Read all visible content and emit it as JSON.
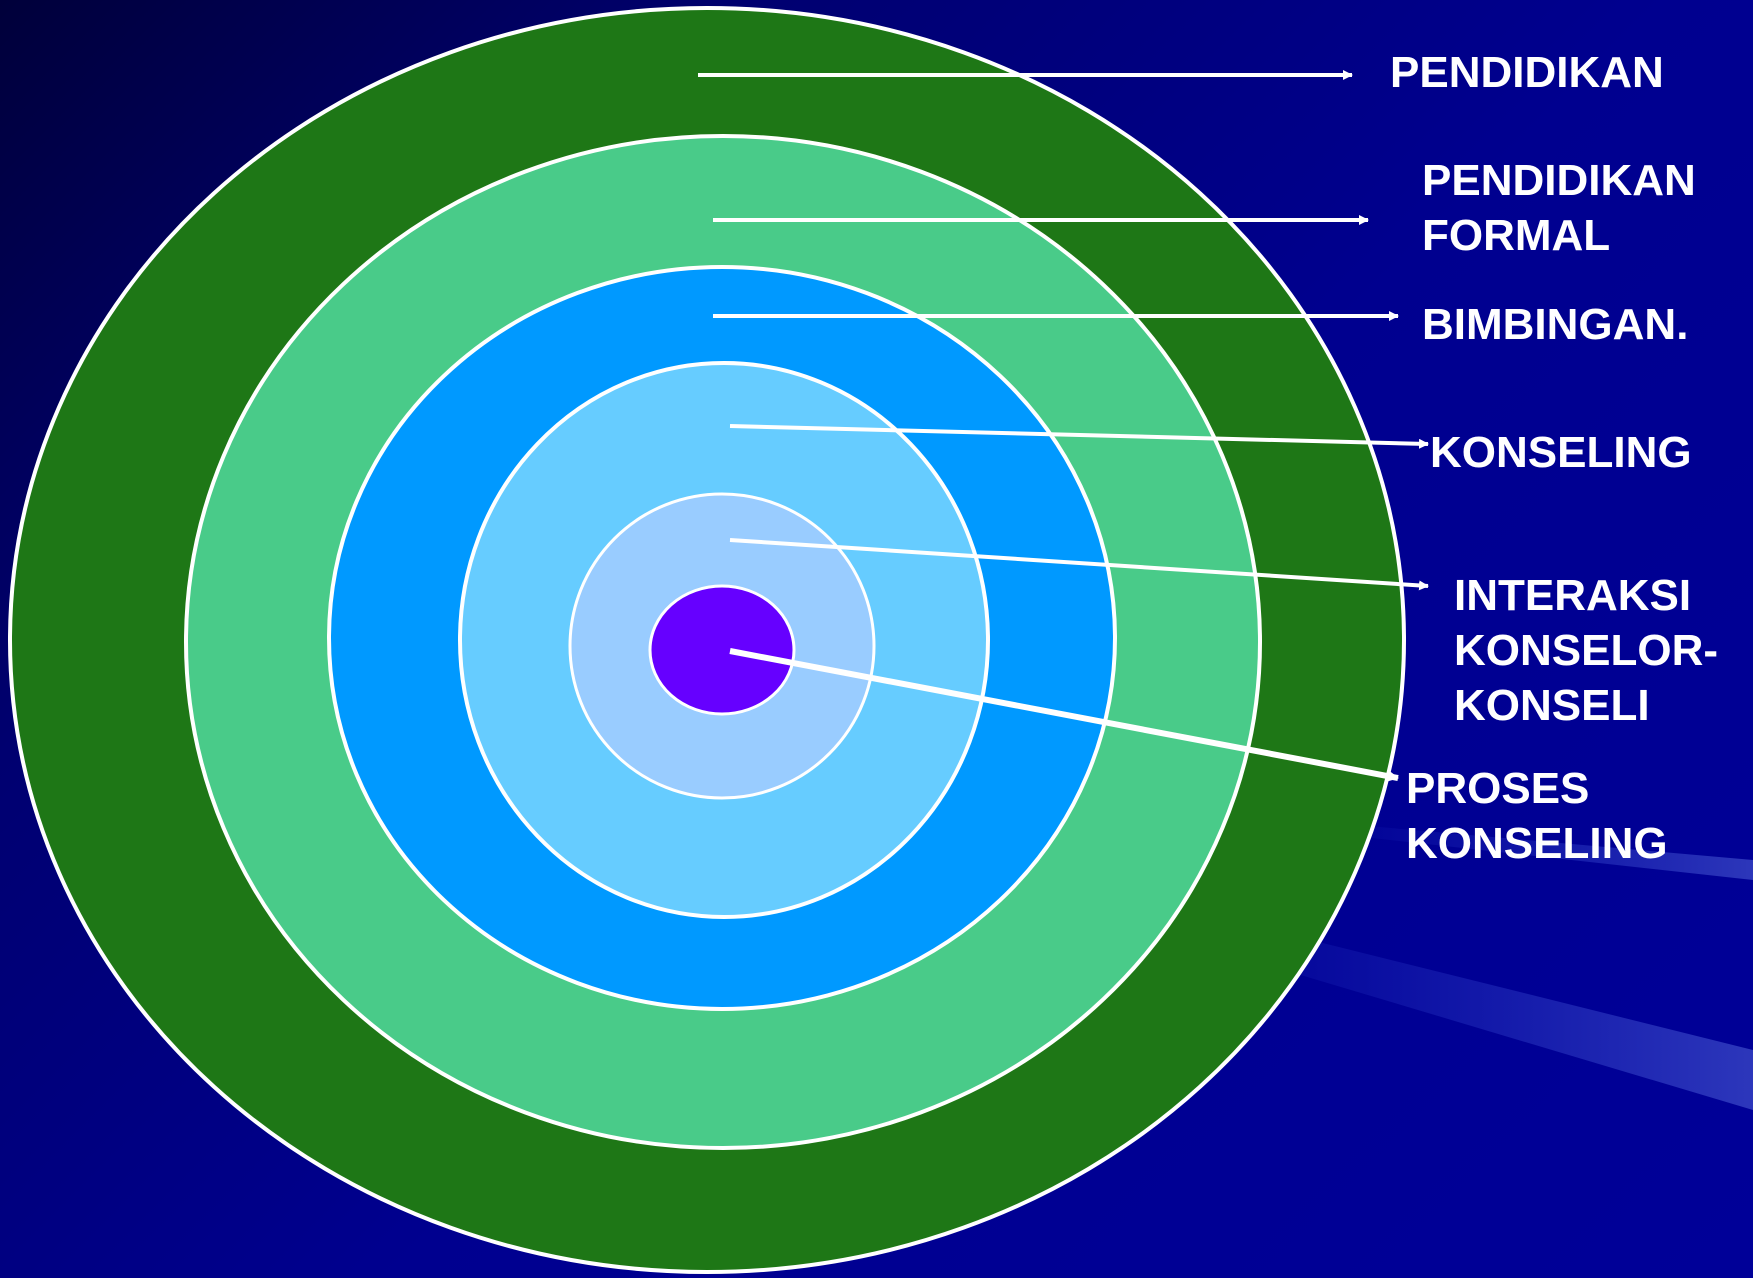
{
  "diagram": {
    "layers": [
      {
        "lines": [
          "PENDIDIKAN"
        ],
        "color": "#1e7716"
      },
      {
        "lines": [
          "PENDIDIKAN",
          "FORMAL"
        ],
        "color": "#49cb89"
      },
      {
        "lines": [
          "BIMBINGAN."
        ],
        "color": "#0099ff"
      },
      {
        "lines": [
          "KONSELING"
        ],
        "color": "#66ccff"
      },
      {
        "lines": [
          "INTERAKSI",
          "KONSELOR-",
          "KONSELI"
        ],
        "color": "#99ccff"
      },
      {
        "lines": [
          "PROSES",
          "KONSELING"
        ],
        "color": "#6600ff"
      }
    ],
    "outline_color": "#ffffff",
    "arrow_color": "#ffffff",
    "text_color": "#ffffff"
  }
}
